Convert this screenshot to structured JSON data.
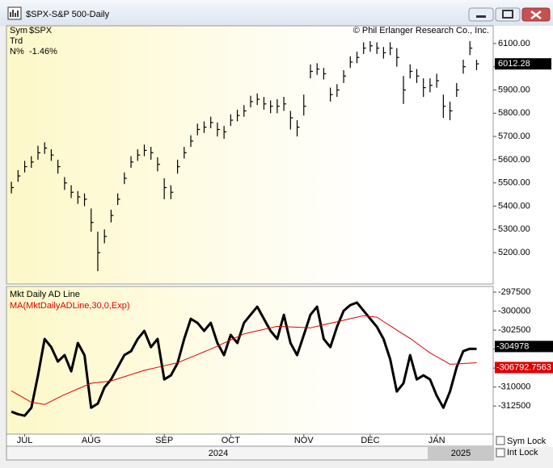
{
  "window": {
    "title": "$SPX-S&P 500-Daily",
    "controls": [
      "Sym Lock",
      "Int Lock"
    ],
    "x_years": [
      "2024",
      "2025"
    ]
  },
  "chart_data": [
    {
      "type": "ohlc",
      "info": [
        [
          "Sym",
          "$SPX"
        ],
        [
          "Trd"
        ],
        [
          "N%",
          "-1.46%"
        ]
      ],
      "annotation": "© Phil Erlanger Research Co., Inc.",
      "color": "#000000",
      "close": [
        5480,
        5530,
        5570,
        5590,
        5630,
        5650,
        5620,
        5570,
        5500,
        5460,
        5440,
        5430,
        5330,
        5200,
        5270,
        5360,
        5430,
        5520,
        5590,
        5620,
        5640,
        5630,
        5580,
        5480,
        5460,
        5570,
        5630,
        5680,
        5730,
        5740,
        5760,
        5730,
        5720,
        5770,
        5790,
        5810,
        5850,
        5860,
        5840,
        5830,
        5830,
        5840,
        5780,
        5740,
        5830,
        5980,
        5990,
        5970,
        5880,
        5900,
        5960,
        6020,
        6040,
        6080,
        6090,
        6080,
        6060,
        6080,
        6040,
        5900,
        5980,
        5960,
        5910,
        5920,
        5940,
        5830,
        5810,
        5900,
        6000,
        6080,
        6012.28
      ],
      "high": [
        5505,
        5555,
        5595,
        5615,
        5660,
        5675,
        5645,
        5600,
        5525,
        5490,
        5465,
        5455,
        5390,
        5290,
        5300,
        5385,
        5455,
        5545,
        5615,
        5645,
        5665,
        5655,
        5610,
        5520,
        5490,
        5600,
        5655,
        5705,
        5755,
        5765,
        5785,
        5760,
        5745,
        5795,
        5815,
        5835,
        5875,
        5885,
        5870,
        5855,
        5860,
        5870,
        5810,
        5770,
        5880,
        6010,
        6015,
        5995,
        5910,
        5925,
        5985,
        6045,
        6065,
        6105,
        6110,
        6105,
        6085,
        6105,
        6080,
        5960,
        6010,
        5990,
        5950,
        5950,
        5970,
        5880,
        5850,
        5930,
        6030,
        6110,
        6030
      ],
      "low": [
        5455,
        5505,
        5545,
        5565,
        5600,
        5625,
        5595,
        5540,
        5470,
        5435,
        5410,
        5400,
        5290,
        5120,
        5240,
        5330,
        5405,
        5495,
        5565,
        5595,
        5615,
        5600,
        5550,
        5430,
        5430,
        5540,
        5605,
        5655,
        5705,
        5715,
        5735,
        5700,
        5690,
        5745,
        5765,
        5785,
        5825,
        5835,
        5815,
        5800,
        5800,
        5810,
        5730,
        5700,
        5790,
        5950,
        5965,
        5945,
        5850,
        5870,
        5930,
        5995,
        6015,
        6055,
        6065,
        6055,
        6035,
        6050,
        6000,
        5840,
        5950,
        5930,
        5870,
        5890,
        5910,
        5780,
        5770,
        5870,
        5970,
        6050,
        5985
      ],
      "ylim": [
        5065,
        6176
      ],
      "yticks": [
        {
          "value": 5200,
          "label": "5200.00"
        },
        {
          "value": 5300,
          "label": "5300.00"
        },
        {
          "value": 5400,
          "label": "5400.00"
        },
        {
          "value": 5500,
          "label": "5500.00"
        },
        {
          "value": 5600,
          "label": "5600.00"
        },
        {
          "value": 5700,
          "label": "5700.00"
        },
        {
          "value": 5800,
          "label": "5800.00"
        },
        {
          "value": 5900,
          "label": "5900.00"
        },
        {
          "value": 6000,
          "label": "6000.00"
        },
        {
          "value": 6100,
          "label": "6100.00"
        }
      ]
    },
    {
      "type": "line",
      "categories": [
        null,
        null,
        "JUL",
        null,
        null,
        null,
        null,
        null,
        null,
        null,
        null,
        null,
        "AUG",
        null,
        null,
        null,
        null,
        null,
        null,
        null,
        null,
        null,
        null,
        "SEP",
        null,
        null,
        null,
        null,
        null,
        null,
        null,
        null,
        null,
        "OCT",
        null,
        null,
        null,
        null,
        null,
        null,
        null,
        null,
        null,
        null,
        "NOV",
        null,
        null,
        null,
        null,
        null,
        null,
        null,
        null,
        null,
        "DEC",
        null,
        null,
        null,
        null,
        null,
        null,
        null,
        null,
        null,
        "JAN",
        null,
        null,
        null,
        null,
        null,
        null
      ],
      "series": [
        {
          "name": "Mkt Daily AD Line",
          "color": "#000000",
          "values": [
            -313250,
            -313570,
            -313780,
            -312720,
            -308460,
            -303670,
            -304740,
            -306650,
            -305800,
            -307930,
            -304200,
            -305800,
            -312720,
            -312180,
            -310060,
            -308990,
            -307400,
            -305800,
            -305270,
            -303670,
            -302610,
            -304740,
            -303670,
            -308990,
            -308460,
            -306860,
            -303670,
            -301010,
            -301540,
            -302610,
            -301540,
            -304200,
            -305800,
            -303140,
            -304200,
            -301540,
            -300480,
            -299420,
            -301010,
            -302610,
            -303670,
            -300480,
            -304200,
            -305800,
            -303140,
            -300480,
            -299420,
            -303670,
            -304740,
            -302080,
            -299950,
            -299200,
            -298880,
            -299950,
            -301010,
            -302080,
            -303670,
            -306330,
            -310590,
            -309520,
            -305800,
            -308990,
            -308460,
            -308990,
            -311120,
            -312720,
            -310590,
            -307400,
            -305270,
            -304950,
            -304978
          ]
        },
        {
          "name": "MA(MktDailyADLine,30,0,Exp)",
          "color": "#e00000",
          "values": [
            -310500,
            -311000,
            -311500,
            -312000,
            -312150,
            -312300,
            -311870,
            -311430,
            -311000,
            -310630,
            -310250,
            -309880,
            -309500,
            -309400,
            -309300,
            -309200,
            -308920,
            -308640,
            -308360,
            -308080,
            -307800,
            -307600,
            -307400,
            -307200,
            -307000,
            -306800,
            -306440,
            -306080,
            -305720,
            -305360,
            -305000,
            -304600,
            -304200,
            -303800,
            -303400,
            -303000,
            -302800,
            -302600,
            -302400,
            -302200,
            -302000,
            -302040,
            -302080,
            -302120,
            -302160,
            -302200,
            -302000,
            -301800,
            -301600,
            -301400,
            -301200,
            -301000,
            -300800,
            -300600,
            -300700,
            -300800,
            -301370,
            -301930,
            -302500,
            -303050,
            -303600,
            -304230,
            -304870,
            -305500,
            -306000,
            -306500,
            -307000,
            -306950,
            -306900,
            -306850,
            -306792.7563
          ]
        }
      ],
      "ylim": [
        -316200,
        -296750
      ],
      "yticks": [
        -297500,
        -300000,
        -302500,
        -305000,
        -307500,
        -310000,
        -312500
      ]
    }
  ]
}
